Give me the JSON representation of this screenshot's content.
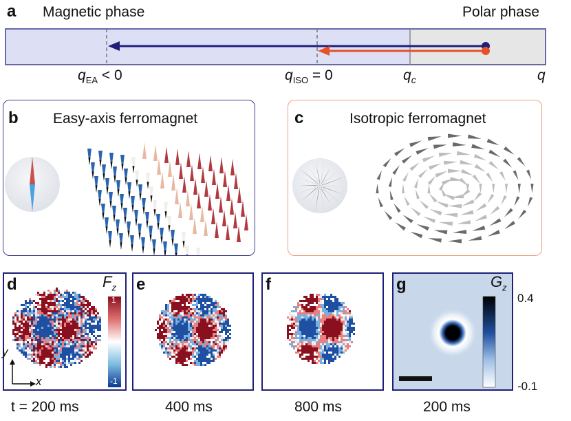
{
  "panel_a": {
    "label": "a",
    "magnetic_phase": "Magnetic phase",
    "polar_phase": "Polar phase",
    "q_ea": {
      "sym": "q",
      "sub": "EA",
      "rel": " < 0"
    },
    "q_iso": {
      "sym": "q",
      "sub": "ISO",
      "rel": " = 0"
    },
    "q_c": {
      "sym": "q",
      "sub": "c"
    },
    "q": "q",
    "colors": {
      "navy": "#1f1f7a",
      "orange": "#e8502a",
      "magnetic_bg": "#dde0f4",
      "polar_bg": "#e6e6e6"
    }
  },
  "panel_b": {
    "label": "b",
    "title": "Easy-axis ferromagnet",
    "border": "#3c3c8c"
  },
  "panel_c": {
    "label": "c",
    "title": "Isotropic ferromagnet",
    "border": "#f0a080"
  },
  "panel_d": {
    "label": "d",
    "time": "t = 200 ms",
    "colorbar_title": {
      "sym": "F",
      "sub": "z"
    },
    "colorbar_max": "1",
    "colorbar_min": "-1",
    "axis_y": "y",
    "axis_x": "x"
  },
  "panel_e": {
    "label": "e",
    "time": "400 ms"
  },
  "panel_f": {
    "label": "f",
    "time": "800 ms"
  },
  "panel_g": {
    "label": "g",
    "time": "200 ms",
    "colorbar_title": {
      "sym": "G",
      "sub": "z"
    },
    "colorbar_max": "0.4",
    "colorbar_min": "-0.1"
  }
}
